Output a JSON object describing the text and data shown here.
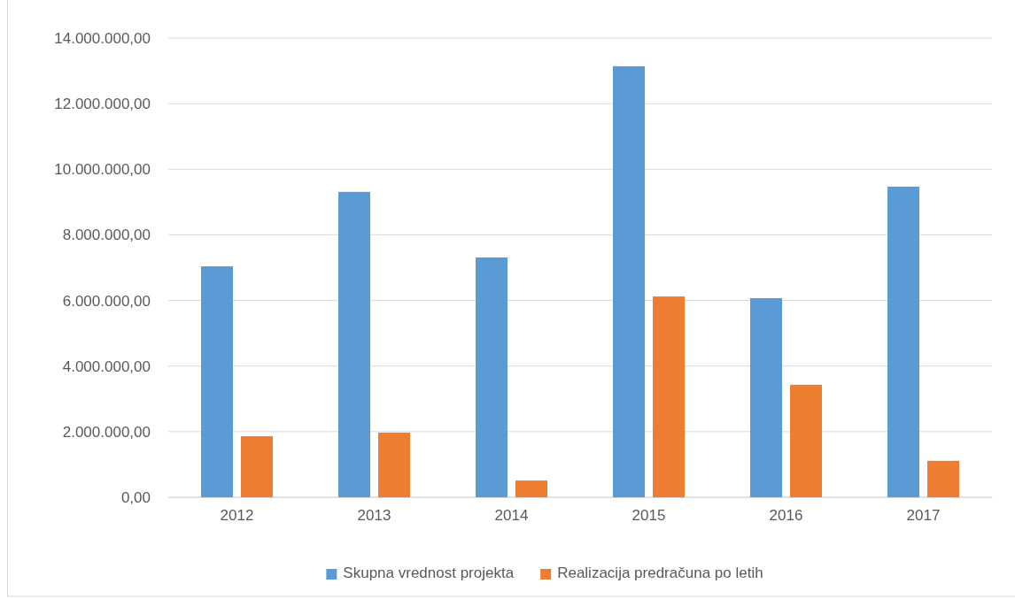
{
  "chart_data": {
    "type": "bar",
    "categories": [
      "2012",
      "2013",
      "2014",
      "2015",
      "2016",
      "2017"
    ],
    "series": [
      {
        "name": "Skupna vrednost projekta",
        "color": "#5b9bd5",
        "values": [
          7040000,
          9310000,
          7310000,
          13140000,
          6070000,
          9470000
        ]
      },
      {
        "name": "Realizacija predračuna po letih",
        "color": "#ed7d31",
        "values": [
          1860000,
          1970000,
          510000,
          6120000,
          3430000,
          1110000
        ]
      }
    ],
    "ylim": [
      0,
      14000000
    ],
    "yticks": [
      {
        "value": 0,
        "label": "0,00"
      },
      {
        "value": 2000000,
        "label": "2.000.000,00"
      },
      {
        "value": 4000000,
        "label": "4.000.000,00"
      },
      {
        "value": 6000000,
        "label": "6.000.000,00"
      },
      {
        "value": 8000000,
        "label": "8.000.000,00"
      },
      {
        "value": 10000000,
        "label": "10.000.000,00"
      },
      {
        "value": 12000000,
        "label": "12.000.000,00"
      },
      {
        "value": 14000000,
        "label": "14.000.000,00"
      }
    ],
    "grid": "y",
    "legend": "bottom"
  }
}
